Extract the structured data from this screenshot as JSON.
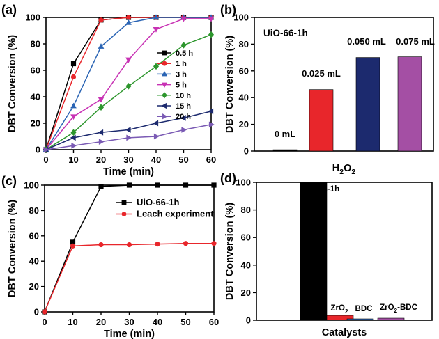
{
  "panels": [
    {
      "id": "a",
      "label": "(a)",
      "chart_data": {
        "type": "line",
        "xlabel": "Time (min)",
        "ylabel": "DBT Conversion (%)",
        "xlim": [
          0,
          60
        ],
        "ylim": [
          0,
          100
        ],
        "xticks": [
          0,
          10,
          20,
          30,
          40,
          50,
          60
        ],
        "yticks": [
          0,
          20,
          40,
          60,
          80,
          100
        ],
        "legend": "upper-center-right",
        "x": [
          0,
          10,
          20,
          30,
          40,
          50,
          60
        ],
        "series": [
          {
            "name": "0.5 h",
            "color": "#000000",
            "marker": "square",
            "values": [
              0,
              65,
              98,
              100,
              100,
              100,
              100
            ]
          },
          {
            "name": "1 h",
            "color": "#e8262b",
            "marker": "circle",
            "values": [
              0,
              55,
              98,
              100,
              100,
              100,
              100
            ]
          },
          {
            "name": "3 h",
            "color": "#2a64b4",
            "marker": "triangle-up",
            "values": [
              0,
              33,
              78,
              96,
              100,
              100,
              100
            ]
          },
          {
            "name": "5 h",
            "color": "#c832b4",
            "marker": "triangle-down",
            "values": [
              0,
              25,
              38,
              68,
              91,
              99,
              99
            ]
          },
          {
            "name": "10 h",
            "color": "#2d962d",
            "marker": "diamond",
            "values": [
              0,
              13,
              32,
              48,
              63,
              79,
              87
            ]
          },
          {
            "name": "15 h",
            "color": "#1c2a6e",
            "marker": "triangle-left",
            "values": [
              0,
              9,
              13,
              15,
              20,
              24,
              29
            ]
          },
          {
            "name": "20 h",
            "color": "#7a5ab4",
            "marker": "triangle-right",
            "values": [
              0,
              3,
              6,
              9,
              10,
              15,
              19
            ]
          }
        ]
      }
    },
    {
      "id": "b",
      "label": "(b)",
      "chart_data": {
        "type": "bar",
        "title": "UiO-66-1h",
        "xlabel": "H2O2",
        "ylabel": "DBT Conversion (%)",
        "ylim": [
          0,
          100
        ],
        "yticks": [
          0,
          20,
          40,
          60,
          80,
          100
        ],
        "categories": [
          "0 mL",
          "0.025 mL",
          "0.050 mL",
          "0.075 mL"
        ],
        "values": [
          1,
          46,
          70,
          70.5
        ],
        "colors": [
          "#000000",
          "#e8262b",
          "#1c2a6e",
          "#a44fa4"
        ]
      }
    },
    {
      "id": "c",
      "label": "(c)",
      "chart_data": {
        "type": "line",
        "xlabel": "Time (min)",
        "ylabel": "DBT Conversion (%)",
        "xlim": [
          0,
          60
        ],
        "ylim": [
          0,
          100
        ],
        "xticks": [
          0,
          10,
          20,
          30,
          40,
          50,
          60
        ],
        "yticks": [
          0,
          20,
          40,
          60,
          80,
          100
        ],
        "legend": "upper-right",
        "x": [
          0,
          10,
          20,
          30,
          40,
          50,
          60
        ],
        "series": [
          {
            "name": "UiO-66-1h",
            "color": "#000000",
            "marker": "square",
            "values": [
              0,
              55,
              99,
              100,
              100,
              100,
              100
            ]
          },
          {
            "name": "Leach experiment",
            "color": "#e8262b",
            "marker": "circle",
            "values": [
              0,
              52,
              53,
              53,
              53.5,
              54,
              54
            ]
          }
        ]
      }
    },
    {
      "id": "d",
      "label": "(d)",
      "chart_data": {
        "type": "bar",
        "xlabel": "Catalysts",
        "ylabel": "DBT Conversion (%)",
        "ylim": [
          0,
          100
        ],
        "yticks": [
          0,
          20,
          40,
          60,
          80,
          100
        ],
        "categories": [
          "UiO-66-1h",
          "ZrO2",
          "BDC",
          "ZrO2-BDC"
        ],
        "values": [
          100,
          3.5,
          1,
          1.5
        ],
        "colors": [
          "#000000",
          "#e8262b",
          "#2a64b4",
          "#a44fa4"
        ]
      }
    }
  ]
}
